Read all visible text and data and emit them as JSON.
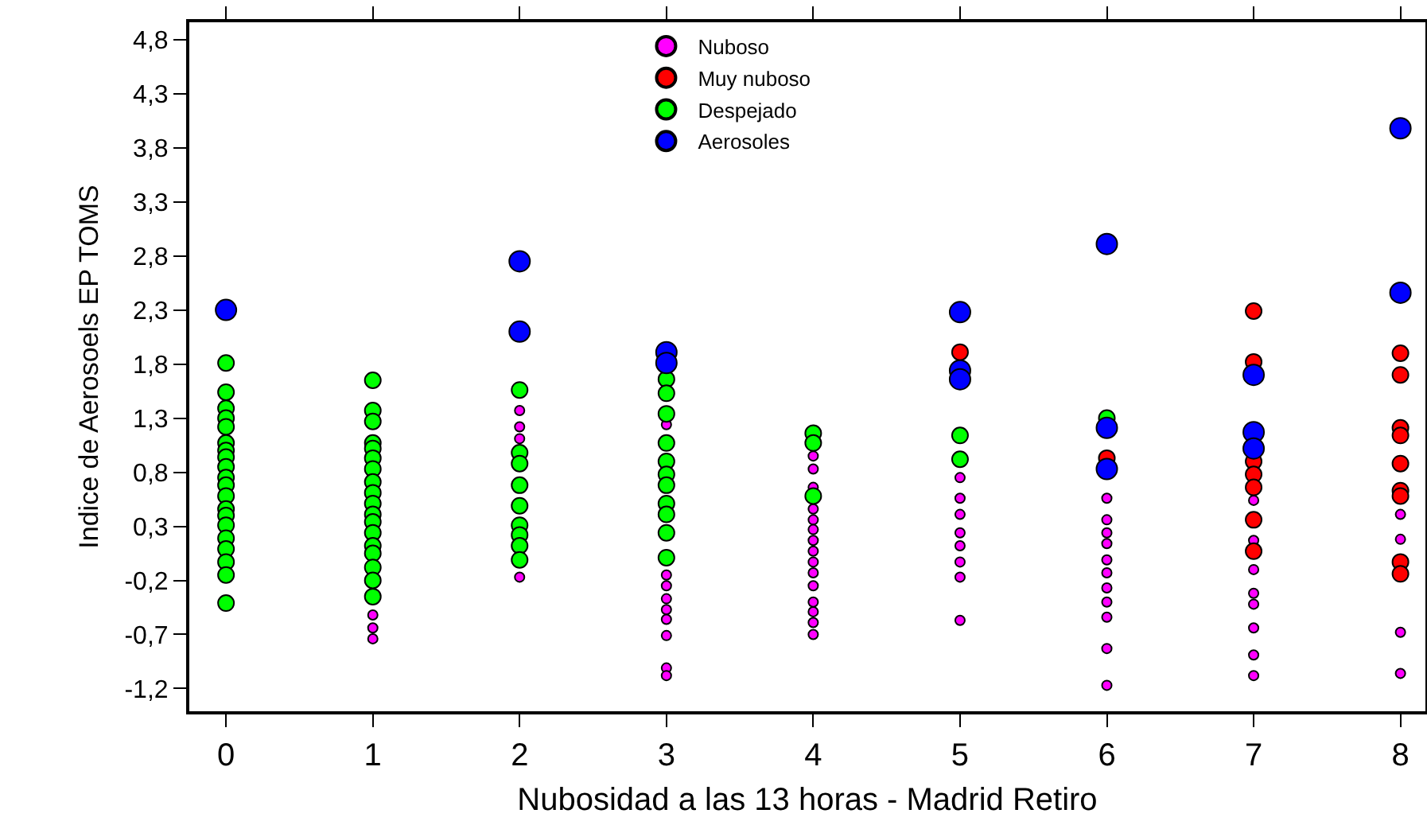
{
  "chart_data": {
    "type": "scatter",
    "xlabel": "Nubosidad a las 13 horas - Madrid Retiro",
    "ylabel": "Indice de Aerosoels EP TOMS",
    "xlim": [
      -0.25,
      8.17
    ],
    "ylim": [
      -1.41,
      4.96
    ],
    "xticks": [
      0,
      1,
      2,
      3,
      4,
      5,
      6,
      7,
      8
    ],
    "yticks": [
      {
        "value": -1.2,
        "label": "-1,2"
      },
      {
        "value": -0.7,
        "label": "-0,7"
      },
      {
        "value": -0.2,
        "label": "-0,2"
      },
      {
        "value": 0.3,
        "label": "0,3"
      },
      {
        "value": 0.8,
        "label": "0,8"
      },
      {
        "value": 1.3,
        "label": "1,3"
      },
      {
        "value": 1.8,
        "label": "1,8"
      },
      {
        "value": 2.3,
        "label": "2,3"
      },
      {
        "value": 2.8,
        "label": "2,8"
      },
      {
        "value": 3.3,
        "label": "3,3"
      },
      {
        "value": 3.8,
        "label": "3,8"
      },
      {
        "value": 4.3,
        "label": "4,3"
      },
      {
        "value": 4.8,
        "label": "4,8"
      }
    ],
    "grid": false,
    "legend": "top",
    "marker": "circle",
    "series": [
      {
        "name": "Nuboso",
        "color": "#ff00ff",
        "x": [
          1,
          1,
          1,
          2,
          2,
          2,
          2,
          3,
          3,
          3,
          3,
          3,
          3,
          3,
          3,
          3,
          4,
          4,
          4,
          4,
          4,
          4,
          4,
          4,
          4,
          4,
          4,
          4,
          4,
          4,
          4,
          5,
          5,
          5,
          5,
          5,
          5,
          5,
          5,
          6,
          6,
          6,
          6,
          6,
          6,
          6,
          6,
          6,
          6,
          6,
          7,
          7,
          7,
          7,
          7,
          7,
          7,
          7,
          8,
          8,
          8,
          8
        ],
        "values": [
          -0.52,
          -0.64,
          -0.74,
          1.37,
          1.22,
          1.11,
          -0.17,
          1.24,
          -0.15,
          -0.25,
          -0.37,
          -0.47,
          -0.56,
          -0.71,
          -1.01,
          -1.08,
          0.95,
          0.83,
          0.66,
          0.46,
          0.36,
          0.27,
          0.17,
          0.07,
          -0.03,
          -0.13,
          -0.25,
          -0.4,
          -0.49,
          -0.59,
          -0.7,
          0.75,
          0.56,
          0.41,
          0.24,
          0.12,
          -0.03,
          -0.17,
          -0.57,
          0.56,
          0.36,
          0.24,
          0.14,
          -0.01,
          -0.13,
          -0.27,
          -0.4,
          -0.54,
          -0.83,
          -1.17,
          0.54,
          0.17,
          -0.1,
          -0.32,
          -0.42,
          -0.64,
          -0.89,
          -1.08,
          0.41,
          0.18,
          -0.68,
          -1.06
        ]
      },
      {
        "name": "Muy nuboso",
        "color": "#ff0000",
        "x": [
          5,
          6,
          7,
          7,
          7,
          7,
          7,
          7,
          7,
          8,
          8,
          8,
          8,
          8,
          8,
          8,
          8,
          8
        ],
        "values": [
          1.91,
          0.93,
          2.29,
          1.82,
          0.9,
          0.78,
          0.66,
          0.36,
          0.07,
          1.9,
          1.7,
          1.21,
          1.14,
          0.88,
          0.63,
          0.58,
          -0.03,
          -0.14
        ]
      },
      {
        "name": "Despejado",
        "color": "#00ff00",
        "x": [
          0,
          0,
          0,
          0,
          0,
          0,
          0,
          0,
          0,
          0,
          0,
          0,
          0,
          0,
          0,
          0,
          0,
          0,
          0,
          0,
          1,
          1,
          1,
          1,
          1,
          1,
          1,
          1,
          1,
          1,
          1,
          1,
          1,
          1,
          1,
          1,
          1,
          1,
          2,
          2,
          2,
          2,
          2,
          2,
          2,
          2,
          2,
          3,
          3,
          3,
          3,
          3,
          3,
          3,
          3,
          3,
          3,
          3,
          4,
          4,
          4,
          5,
          5,
          6
        ],
        "values": [
          1.81,
          1.54,
          1.39,
          1.3,
          1.22,
          1.07,
          1.0,
          0.94,
          0.85,
          0.75,
          0.68,
          0.58,
          0.46,
          0.4,
          0.31,
          0.19,
          0.09,
          -0.03,
          -0.15,
          -0.41,
          1.65,
          1.37,
          1.27,
          1.07,
          1.02,
          0.93,
          0.83,
          0.71,
          0.61,
          0.51,
          0.41,
          0.34,
          0.24,
          0.12,
          0.05,
          -0.08,
          -0.2,
          -0.35,
          1.56,
          0.98,
          0.88,
          0.68,
          0.49,
          0.31,
          0.22,
          0.12,
          -0.01,
          1.66,
          1.53,
          1.34,
          1.07,
          0.9,
          0.78,
          0.68,
          0.51,
          0.41,
          0.24,
          0.01,
          1.16,
          1.07,
          0.58,
          1.14,
          0.92,
          1.3
        ]
      },
      {
        "name": "Aerosoles",
        "color": "#0000ff",
        "x": [
          0,
          2,
          2,
          3,
          3,
          5,
          5,
          5,
          6,
          6,
          6,
          7,
          7,
          7,
          8,
          8
        ],
        "values": [
          2.3,
          2.75,
          2.1,
          1.91,
          1.81,
          2.28,
          1.74,
          1.66,
          2.91,
          1.21,
          0.83,
          1.7,
          1.17,
          1.02,
          3.98,
          2.46
        ]
      }
    ]
  }
}
